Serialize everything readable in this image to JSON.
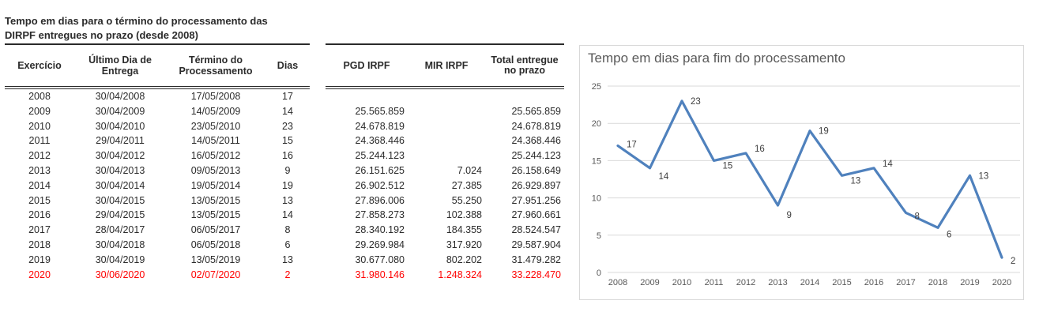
{
  "left_table": {
    "title_line1": "Tempo em dias para o término do processamento das",
    "title_line2": "DIRPF entregues no prazo (desde 2008)",
    "headers": {
      "exercicio": "Exercício",
      "entrega": "Último Dia de Entrega",
      "termino": "Término do Processamento",
      "dias": "Dias"
    }
  },
  "middle_table": {
    "headers": {
      "pgd": "PGD IRPF",
      "mir": "MIR IRPF",
      "total": "Total entregue no prazo"
    }
  },
  "rows": [
    {
      "exercicio": "2008",
      "entrega": "30/04/2008",
      "termino": "17/05/2008",
      "dias": "17",
      "pgd": "",
      "mir": "",
      "total": ""
    },
    {
      "exercicio": "2009",
      "entrega": "30/04/2009",
      "termino": "14/05/2009",
      "dias": "14",
      "pgd": "25.565.859",
      "mir": "",
      "total": "25.565.859"
    },
    {
      "exercicio": "2010",
      "entrega": "30/04/2010",
      "termino": "23/05/2010",
      "dias": "23",
      "pgd": "24.678.819",
      "mir": "",
      "total": "24.678.819"
    },
    {
      "exercicio": "2011",
      "entrega": "29/04/2011",
      "termino": "14/05/2011",
      "dias": "15",
      "pgd": "24.368.446",
      "mir": "",
      "total": "24.368.446"
    },
    {
      "exercicio": "2012",
      "entrega": "30/04/2012",
      "termino": "16/05/2012",
      "dias": "16",
      "pgd": "25.244.123",
      "mir": "",
      "total": "25.244.123"
    },
    {
      "exercicio": "2013",
      "entrega": "30/04/2013",
      "termino": "09/05/2013",
      "dias": "9",
      "pgd": "26.151.625",
      "mir": "7.024",
      "total": "26.158.649"
    },
    {
      "exercicio": "2014",
      "entrega": "30/04/2014",
      "termino": "19/05/2014",
      "dias": "19",
      "pgd": "26.902.512",
      "mir": "27.385",
      "total": "26.929.897"
    },
    {
      "exercicio": "2015",
      "entrega": "30/04/2015",
      "termino": "13/05/2015",
      "dias": "13",
      "pgd": "27.896.006",
      "mir": "55.250",
      "total": "27.951.256"
    },
    {
      "exercicio": "2016",
      "entrega": "29/04/2015",
      "termino": "13/05/2015",
      "dias": "14",
      "pgd": "27.858.273",
      "mir": "102.388",
      "total": "27.960.661"
    },
    {
      "exercicio": "2017",
      "entrega": "28/04/2017",
      "termino": "06/05/2017",
      "dias": "8",
      "pgd": "28.340.192",
      "mir": "184.355",
      "total": "28.524.547"
    },
    {
      "exercicio": "2018",
      "entrega": "30/04/2018",
      "termino": "06/05/2018",
      "dias": "6",
      "pgd": "29.269.984",
      "mir": "317.920",
      "total": "29.587.904"
    },
    {
      "exercicio": "2019",
      "entrega": "30/04/2019",
      "termino": "13/05/2019",
      "dias": "13",
      "pgd": "30.677.080",
      "mir": "802.202",
      "total": "31.479.282"
    },
    {
      "exercicio": "2020",
      "entrega": "30/06/2020",
      "termino": "02/07/2020",
      "dias": "2",
      "pgd": "31.980.146",
      "mir": "1.248.324",
      "total": "33.228.470",
      "highlight": true
    }
  ],
  "colors": {
    "highlight": "#FF0000",
    "line": "#4F81BD",
    "grid": "#D9D9D9",
    "axis_text": "#595959",
    "chart_title": "#595959",
    "data_label": "#404040"
  },
  "chart_data": {
    "type": "line",
    "title": "Tempo em dias para fim do processamento",
    "categories": [
      "2008",
      "2009",
      "2010",
      "2011",
      "2012",
      "2013",
      "2014",
      "2015",
      "2016",
      "2017",
      "2018",
      "2019",
      "2020"
    ],
    "values": [
      17,
      14,
      23,
      15,
      16,
      9,
      19,
      13,
      14,
      8,
      6,
      13,
      2
    ],
    "xlabel": "",
    "ylabel": "",
    "ylim": [
      0,
      25
    ],
    "yticks": [
      0,
      5,
      10,
      15,
      20,
      25
    ],
    "grid": true,
    "legend": false,
    "data_labels": true
  }
}
